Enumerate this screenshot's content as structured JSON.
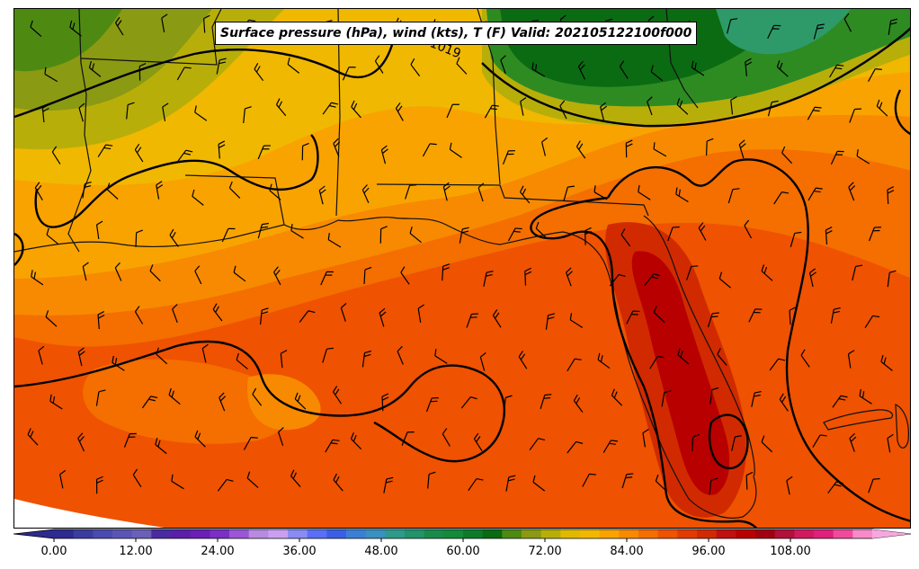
{
  "title": "Surface pressure (hPa), wind (kts), T (F) Valid: 202105122100f000",
  "map": {
    "contour_label": "1019",
    "contour_color": "#000000",
    "border_color": "#111111",
    "temperature_palette": {
      "cool_green": "#0b6b12",
      "green": "#2e8b22",
      "olive": "#8a9a12",
      "yellow_olive": "#b8ae0a",
      "gold": "#f0b800",
      "orange_light": "#f9a300",
      "orange": "#f78a00",
      "orange_dark": "#f46e00",
      "red_orange": "#ef5200",
      "red": "#d12a00",
      "dark_red": "#b80000"
    }
  },
  "colorbar": {
    "tick_labels": [
      "0.00",
      "12.00",
      "24.00",
      "36.00",
      "48.00",
      "60.00",
      "72.00",
      "84.00",
      "96.00",
      "108.00"
    ],
    "tick_values": [
      0,
      12,
      24,
      36,
      48,
      60,
      72,
      84,
      96,
      108
    ],
    "range": [
      0,
      120
    ],
    "step": 3,
    "colors": [
      "#2e2a8f",
      "#3b3ca0",
      "#4a4ab0",
      "#5a55b5",
      "#6a60b8",
      "#4b2ba0",
      "#5a1fa8",
      "#6a1fb5",
      "#7a2fc5",
      "#9b55d5",
      "#b88ae0",
      "#c9a0f0",
      "#8b8bf5",
      "#5a6ff5",
      "#3a5fe5",
      "#3a7fd5",
      "#3a90c0",
      "#2e9a8a",
      "#22936a",
      "#1a8a4a",
      "#148a3a",
      "#0d7a2a",
      "#0b6b12",
      "#4e8a12",
      "#8a9a12",
      "#b8ae0a",
      "#e0b800",
      "#f0b800",
      "#f9a300",
      "#f78a00",
      "#f46e00",
      "#ef5200",
      "#e23a00",
      "#d12a00",
      "#c01010",
      "#b80000",
      "#a00010",
      "#b0103a",
      "#d01a60",
      "#e0207a",
      "#f04a9a",
      "#f88ac8"
    ],
    "under_color": "#2e2a8f",
    "over_color": "#f8a6e0"
  }
}
